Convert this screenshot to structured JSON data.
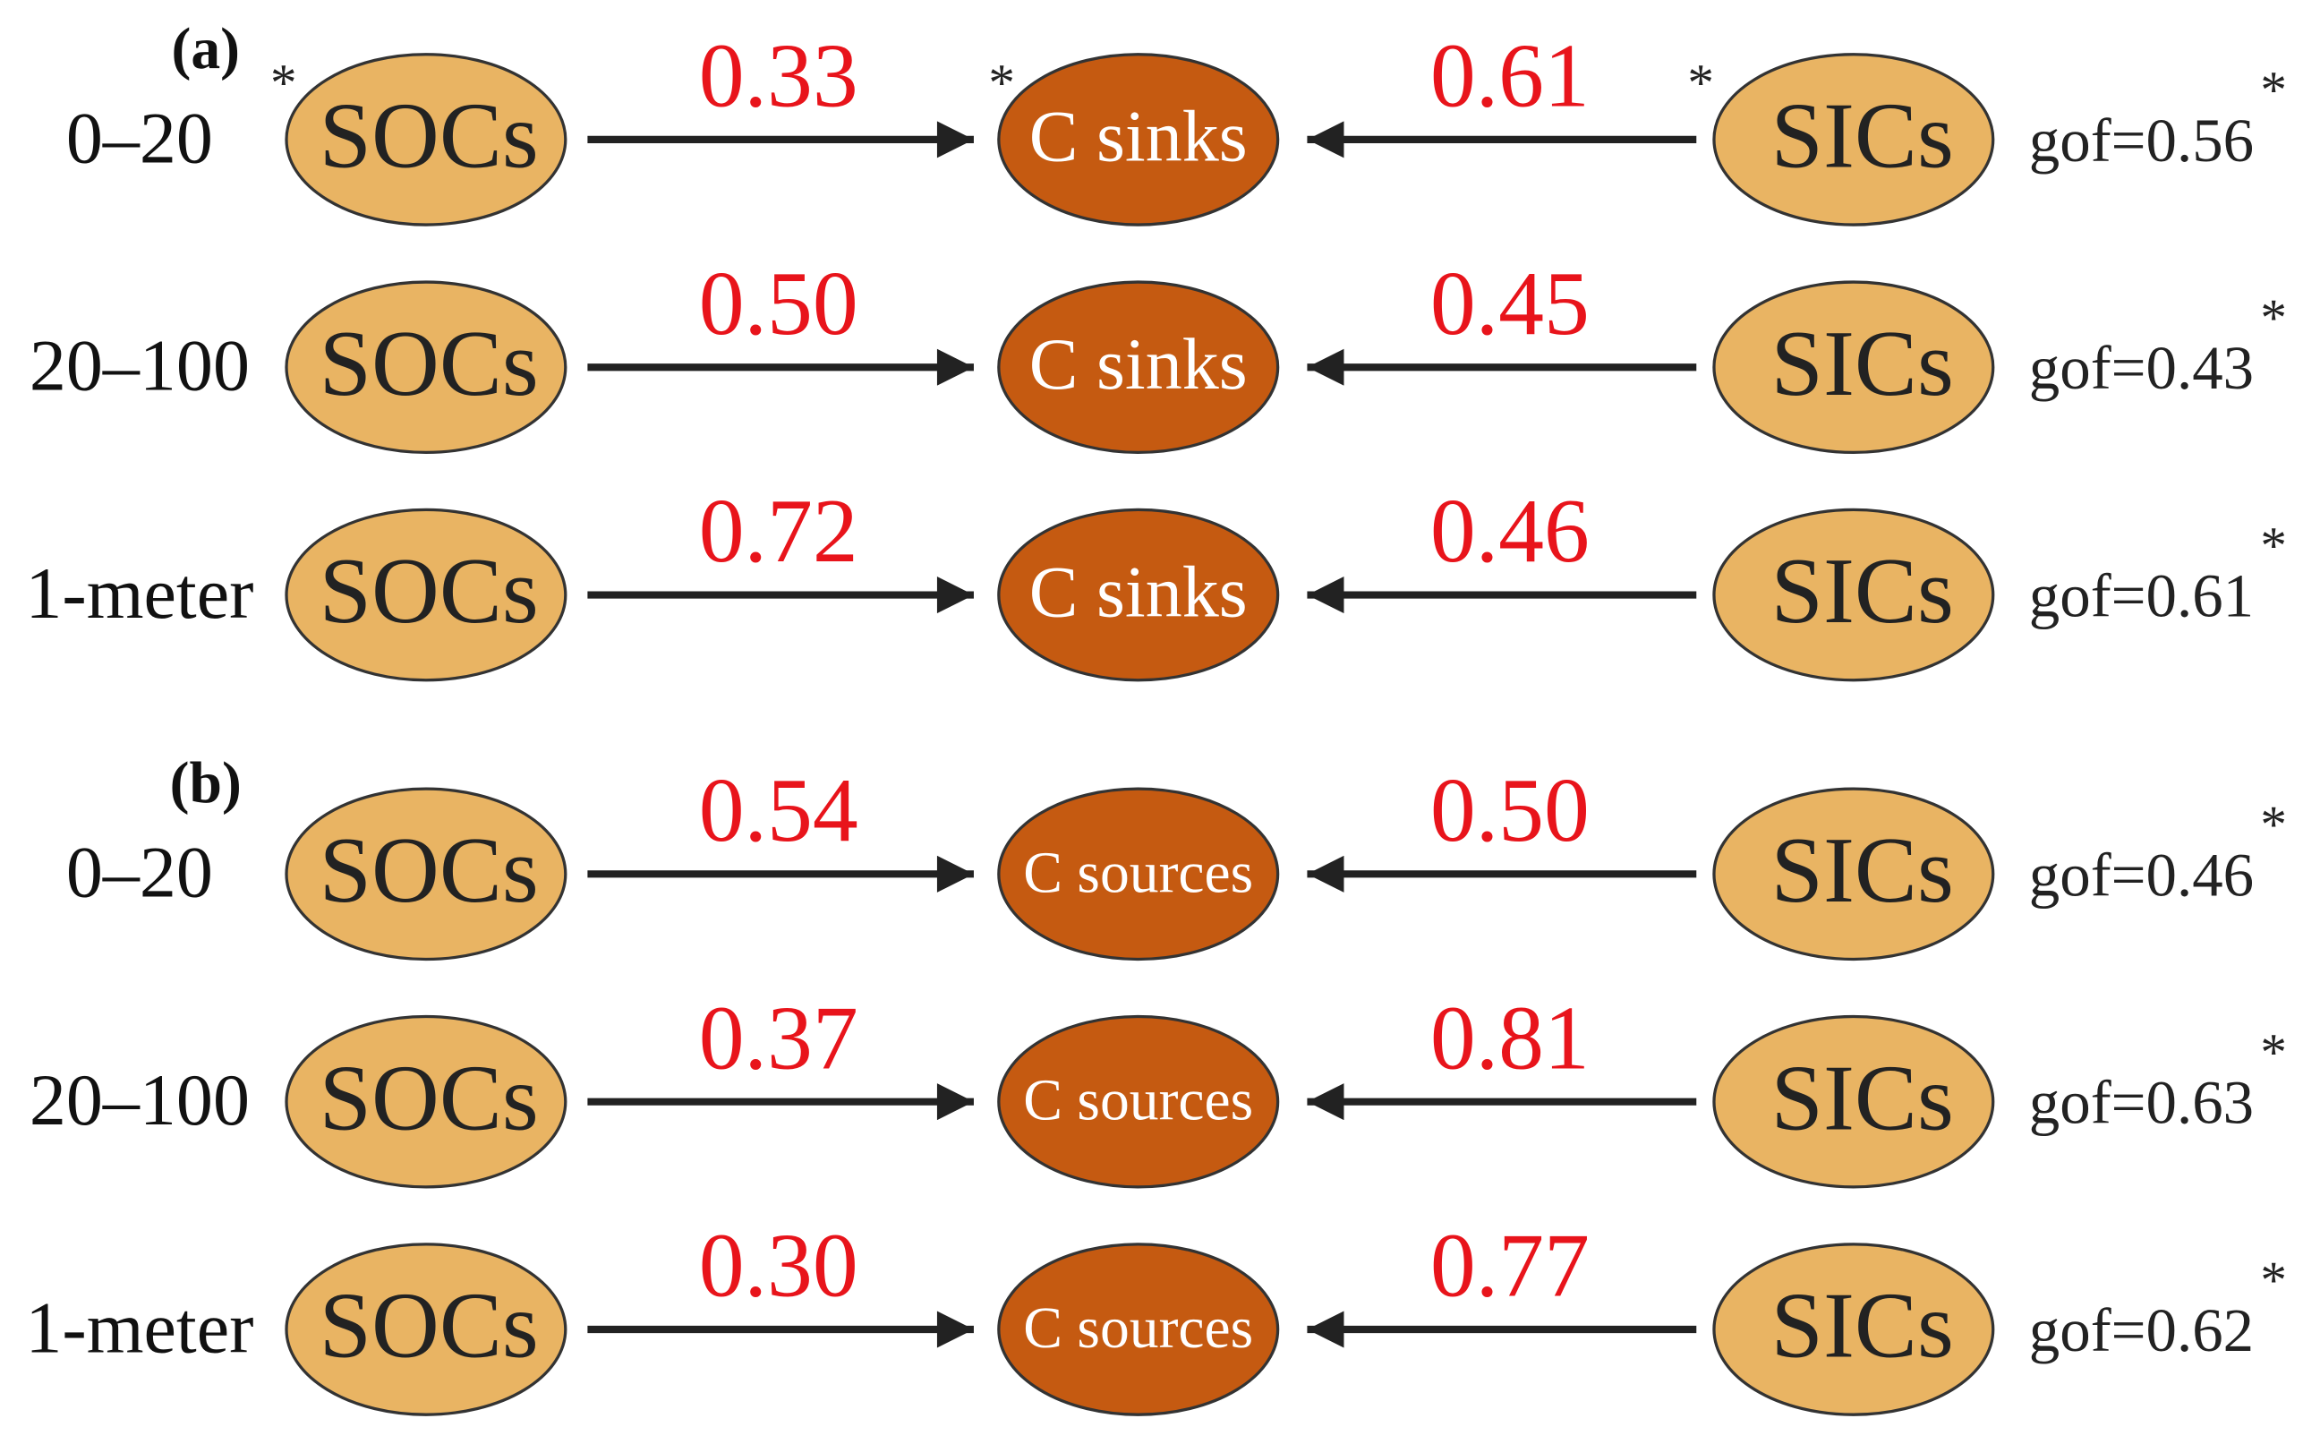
{
  "panels": [
    {
      "label": "(a)",
      "rows": [
        {
          "depth": "0–20",
          "source_left": {
            "label": "SOCs",
            "asterisk": "*"
          },
          "coef_left": "0.33",
          "target": {
            "label": "C sinks",
            "asterisk": "*"
          },
          "coef_right": "0.61",
          "source_right": {
            "label": "SICs",
            "asterisk": "*"
          },
          "gof": "gof=0.56",
          "gof_asterisk": "*"
        },
        {
          "depth": "20–100",
          "source_left": {
            "label": "SOCs"
          },
          "coef_left": "0.50",
          "target": {
            "label": "C sinks"
          },
          "coef_right": "0.45",
          "source_right": {
            "label": "SICs"
          },
          "gof": "gof=0.43",
          "gof_asterisk": "*"
        },
        {
          "depth": "1-meter",
          "source_left": {
            "label": "SOCs"
          },
          "coef_left": "0.72",
          "target": {
            "label": "C sinks"
          },
          "coef_right": "0.46",
          "source_right": {
            "label": "SICs"
          },
          "gof": "gof=0.61",
          "gof_asterisk": "*"
        }
      ]
    },
    {
      "label": "(b)",
      "rows": [
        {
          "depth": "0–20",
          "source_left": {
            "label": "SOCs"
          },
          "coef_left": "0.54",
          "target": {
            "label": "C sources"
          },
          "coef_right": "0.50",
          "source_right": {
            "label": "SICs"
          },
          "gof": "gof=0.46",
          "gof_asterisk": "*"
        },
        {
          "depth": "20–100",
          "source_left": {
            "label": "SOCs"
          },
          "coef_left": "0.37",
          "target": {
            "label": "C sources"
          },
          "coef_right": "0.81",
          "source_right": {
            "label": "SICs"
          },
          "gof": "gof=0.63",
          "gof_asterisk": "*"
        },
        {
          "depth": "1-meter",
          "source_left": {
            "label": "SOCs"
          },
          "coef_left": "0.30",
          "target": {
            "label": "C sources"
          },
          "coef_right": "0.77",
          "source_right": {
            "label": "SICs"
          },
          "gof": "gof=0.62",
          "gof_asterisk": "*"
        }
      ]
    }
  ]
}
